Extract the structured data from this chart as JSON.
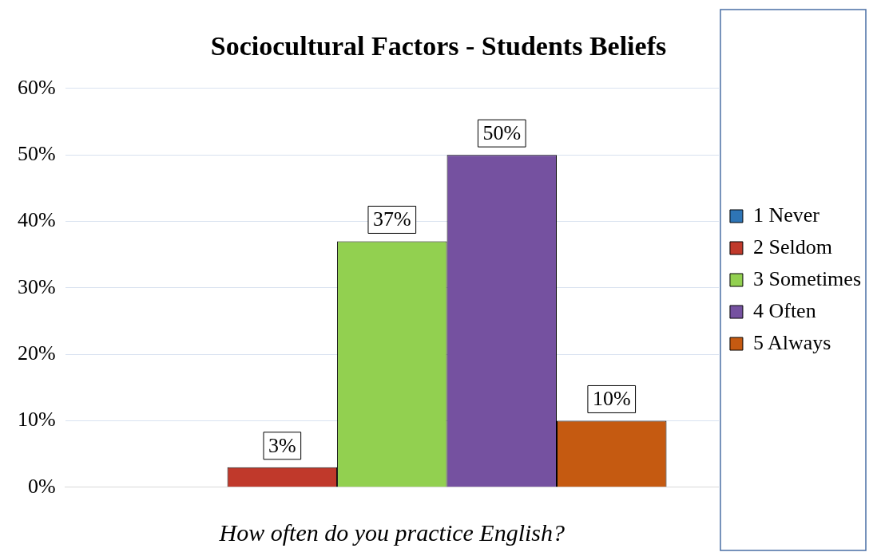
{
  "chart_data": {
    "type": "bar",
    "title": "Sociocultural Factors - Students Beliefs",
    "xlabel": "How often do you practice English?",
    "categories": [
      null
    ],
    "series": [
      {
        "name": "1 Never",
        "color": "#2e75b6",
        "values": [
          0
        ],
        "value_labels": [
          null
        ]
      },
      {
        "name": "2 Seldom",
        "color": "#c0392b",
        "values": [
          3
        ],
        "value_labels": [
          "3%"
        ]
      },
      {
        "name": "3 Sometimes",
        "color": "#92d050",
        "values": [
          37
        ],
        "value_labels": [
          "37%"
        ]
      },
      {
        "name": "4 Often",
        "color": "#7551a0",
        "values": [
          50
        ],
        "value_labels": [
          "50%"
        ]
      },
      {
        "name": "5 Always",
        "color": "#c55a11",
        "values": [
          10
        ],
        "value_labels": [
          "10%"
        ]
      }
    ],
    "ylim": [
      0,
      60
    ],
    "yticks": [
      {
        "value": 0,
        "label": "0%"
      },
      {
        "value": 10,
        "label": "10%"
      },
      {
        "value": 20,
        "label": "20%"
      },
      {
        "value": 30,
        "label": "30%"
      },
      {
        "value": 40,
        "label": "40%"
      },
      {
        "value": 50,
        "label": "50%"
      },
      {
        "value": 60,
        "label": "60%"
      }
    ],
    "grid": "y",
    "legend": "right"
  }
}
